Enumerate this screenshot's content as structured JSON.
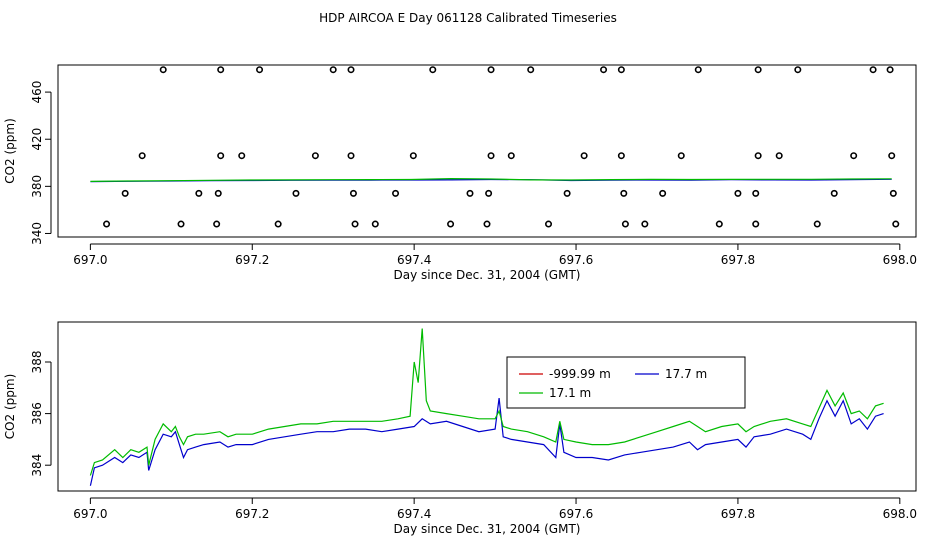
{
  "title": "HDP AIRCOA E  Day 061128  Calibrated Timeseries",
  "chart_data": [
    {
      "type": "scatter",
      "xlabel": "Day since Dec. 31, 2004 (GMT)",
      "ylabel": "CO2 (ppm)",
      "xlim": [
        696.96,
        698.02
      ],
      "ylim": [
        337,
        483
      ],
      "xticks": [
        697.0,
        697.2,
        697.4,
        697.6,
        697.8,
        698.0
      ],
      "xtick_labels": [
        "697.0",
        "697.2",
        "697.4",
        "697.6",
        "697.8",
        "698.0"
      ],
      "yticks": [
        340,
        380,
        420,
        460
      ],
      "ytick_labels": [
        "340",
        "380",
        "420",
        "460"
      ],
      "points": [
        [
          697.09,
          479
        ],
        [
          697.161,
          479
        ],
        [
          697.209,
          479
        ],
        [
          697.3,
          479
        ],
        [
          697.322,
          479
        ],
        [
          697.423,
          479
        ],
        [
          697.495,
          479
        ],
        [
          697.544,
          479
        ],
        [
          697.634,
          479
        ],
        [
          697.656,
          479
        ],
        [
          697.751,
          479
        ],
        [
          697.825,
          479
        ],
        [
          697.874,
          479
        ],
        [
          697.967,
          479
        ],
        [
          697.988,
          479
        ],
        [
          697.064,
          406
        ],
        [
          697.161,
          406
        ],
        [
          697.187,
          406
        ],
        [
          697.278,
          406
        ],
        [
          697.322,
          406
        ],
        [
          697.399,
          406
        ],
        [
          697.495,
          406
        ],
        [
          697.52,
          406
        ],
        [
          697.61,
          406
        ],
        [
          697.656,
          406
        ],
        [
          697.73,
          406
        ],
        [
          697.825,
          406
        ],
        [
          697.851,
          406
        ],
        [
          697.943,
          406
        ],
        [
          697.99,
          406
        ],
        [
          697.043,
          374
        ],
        [
          697.134,
          374
        ],
        [
          697.158,
          374
        ],
        [
          697.254,
          374
        ],
        [
          697.325,
          374
        ],
        [
          697.377,
          374
        ],
        [
          697.469,
          374
        ],
        [
          697.492,
          374
        ],
        [
          697.589,
          374
        ],
        [
          697.659,
          374
        ],
        [
          697.707,
          374
        ],
        [
          697.8,
          374
        ],
        [
          697.822,
          374
        ],
        [
          697.919,
          374
        ],
        [
          697.992,
          374
        ],
        [
          697.02,
          348
        ],
        [
          697.112,
          348
        ],
        [
          697.156,
          348
        ],
        [
          697.232,
          348
        ],
        [
          697.327,
          348
        ],
        [
          697.352,
          348
        ],
        [
          697.445,
          348
        ],
        [
          697.49,
          348
        ],
        [
          697.566,
          348
        ],
        [
          697.661,
          348
        ],
        [
          697.685,
          348
        ],
        [
          697.777,
          348
        ],
        [
          697.822,
          348
        ],
        [
          697.898,
          348
        ],
        [
          697.995,
          348
        ]
      ],
      "series": [
        {
          "name": "-999.99 m",
          "color": "#cc0000",
          "values": []
        },
        {
          "name": "17.7 m",
          "color": "#0000cc",
          "values": [
            384,
            384.3,
            384.5,
            384.8,
            385,
            385.1,
            385.2,
            385.3,
            385.4,
            385.5,
            385.8,
            385.6,
            385,
            385.2,
            385.4,
            385.3,
            385.6,
            385.5,
            385.4,
            385.7,
            386
          ]
        },
        {
          "name": "17.1 m",
          "color": "#00bb00",
          "values": [
            384.2,
            384.5,
            384.8,
            385.1,
            385.4,
            385.5,
            385.6,
            385.7,
            385.8,
            386.6,
            386.2,
            385.5,
            385.4,
            385.7,
            385.9,
            385.8,
            385.9,
            386,
            386,
            386.2,
            386.4
          ]
        }
      ]
    },
    {
      "type": "line",
      "xlabel": "Day since Dec. 31, 2004 (GMT)",
      "ylabel": "CO2 (ppm)",
      "xlim": [
        696.96,
        698.02
      ],
      "ylim": [
        383.0,
        389.55
      ],
      "xticks": [
        697.0,
        697.2,
        697.4,
        697.6,
        697.8,
        698.0
      ],
      "xtick_labels": [
        "697.0",
        "697.2",
        "697.4",
        "697.6",
        "697.8",
        "698.0"
      ],
      "yticks": [
        384,
        386,
        388
      ],
      "ytick_labels": [
        "384",
        "386",
        "388"
      ],
      "legend": [
        {
          "label": "-999.99 m",
          "color": "#cc0000"
        },
        {
          "label": "17.7 m",
          "color": "#0000cc"
        },
        {
          "label": "17.1 m",
          "color": "#00bb00"
        }
      ],
      "series": [
        {
          "name": "17.7 m",
          "color": "#0000cc",
          "points": [
            [
              697.0,
              383.2
            ],
            [
              697.005,
              383.9
            ],
            [
              697.015,
              384.0
            ],
            [
              697.03,
              384.3
            ],
            [
              697.04,
              384.1
            ],
            [
              697.05,
              384.4
            ],
            [
              697.06,
              384.3
            ],
            [
              697.07,
              384.5
            ],
            [
              697.072,
              383.8
            ],
            [
              697.08,
              384.6
            ],
            [
              697.09,
              385.2
            ],
            [
              697.1,
              385.1
            ],
            [
              697.105,
              385.3
            ],
            [
              697.11,
              384.8
            ],
            [
              697.115,
              384.3
            ],
            [
              697.12,
              384.6
            ],
            [
              697.13,
              384.7
            ],
            [
              697.14,
              384.8
            ],
            [
              697.16,
              384.9
            ],
            [
              697.17,
              384.7
            ],
            [
              697.18,
              384.8
            ],
            [
              697.2,
              384.8
            ],
            [
              697.22,
              385.0
            ],
            [
              697.24,
              385.1
            ],
            [
              697.26,
              385.2
            ],
            [
              697.28,
              385.3
            ],
            [
              697.3,
              385.3
            ],
            [
              697.32,
              385.4
            ],
            [
              697.34,
              385.4
            ],
            [
              697.36,
              385.3
            ],
            [
              697.38,
              385.4
            ],
            [
              697.4,
              385.5
            ],
            [
              697.41,
              385.8
            ],
            [
              697.42,
              385.6
            ],
            [
              697.44,
              385.7
            ],
            [
              697.46,
              385.5
            ],
            [
              697.48,
              385.3
            ],
            [
              697.5,
              385.4
            ],
            [
              697.505,
              386.6
            ],
            [
              697.51,
              385.1
            ],
            [
              697.52,
              385.0
            ],
            [
              697.54,
              384.9
            ],
            [
              697.56,
              384.8
            ],
            [
              697.575,
              384.3
            ],
            [
              697.58,
              385.6
            ],
            [
              697.585,
              384.5
            ],
            [
              697.6,
              384.3
            ],
            [
              697.62,
              384.3
            ],
            [
              697.64,
              384.2
            ],
            [
              697.66,
              384.4
            ],
            [
              697.68,
              384.5
            ],
            [
              697.7,
              384.6
            ],
            [
              697.72,
              384.7
            ],
            [
              697.74,
              384.9
            ],
            [
              697.75,
              384.6
            ],
            [
              697.76,
              384.8
            ],
            [
              697.78,
              384.9
            ],
            [
              697.8,
              385.0
            ],
            [
              697.81,
              384.7
            ],
            [
              697.82,
              385.1
            ],
            [
              697.84,
              385.2
            ],
            [
              697.86,
              385.4
            ],
            [
              697.88,
              385.2
            ],
            [
              697.89,
              385.0
            ],
            [
              697.9,
              385.8
            ],
            [
              697.91,
              386.5
            ],
            [
              697.92,
              385.9
            ],
            [
              697.93,
              386.5
            ],
            [
              697.94,
              385.6
            ],
            [
              697.95,
              385.8
            ],
            [
              697.96,
              385.4
            ],
            [
              697.97,
              385.9
            ],
            [
              697.98,
              386.0
            ]
          ]
        },
        {
          "name": "17.1 m",
          "color": "#00bb00",
          "points": [
            [
              697.0,
              383.6
            ],
            [
              697.005,
              384.1
            ],
            [
              697.015,
              384.2
            ],
            [
              697.03,
              384.6
            ],
            [
              697.04,
              384.3
            ],
            [
              697.05,
              384.6
            ],
            [
              697.06,
              384.5
            ],
            [
              697.07,
              384.7
            ],
            [
              697.072,
              384.0
            ],
            [
              697.08,
              385.0
            ],
            [
              697.09,
              385.6
            ],
            [
              697.1,
              385.3
            ],
            [
              697.105,
              385.5
            ],
            [
              697.11,
              385.1
            ],
            [
              697.115,
              384.8
            ],
            [
              697.12,
              385.1
            ],
            [
              697.13,
              385.2
            ],
            [
              697.14,
              385.2
            ],
            [
              697.16,
              385.3
            ],
            [
              697.17,
              385.1
            ],
            [
              697.18,
              385.2
            ],
            [
              697.2,
              385.2
            ],
            [
              697.22,
              385.4
            ],
            [
              697.24,
              385.5
            ],
            [
              697.26,
              385.6
            ],
            [
              697.28,
              385.6
            ],
            [
              697.3,
              385.7
            ],
            [
              697.32,
              385.7
            ],
            [
              697.34,
              385.7
            ],
            [
              697.36,
              385.7
            ],
            [
              697.38,
              385.8
            ],
            [
              697.395,
              385.9
            ],
            [
              697.4,
              388.0
            ],
            [
              697.405,
              387.2
            ],
            [
              697.41,
              389.3
            ],
            [
              697.415,
              386.5
            ],
            [
              697.42,
              386.1
            ],
            [
              697.44,
              386.0
            ],
            [
              697.46,
              385.9
            ],
            [
              697.48,
              385.8
            ],
            [
              697.5,
              385.8
            ],
            [
              697.505,
              386.1
            ],
            [
              697.51,
              385.5
            ],
            [
              697.52,
              385.4
            ],
            [
              697.54,
              385.3
            ],
            [
              697.56,
              385.1
            ],
            [
              697.575,
              384.9
            ],
            [
              697.58,
              385.7
            ],
            [
              697.585,
              385.0
            ],
            [
              697.6,
              384.9
            ],
            [
              697.62,
              384.8
            ],
            [
              697.64,
              384.8
            ],
            [
              697.66,
              384.9
            ],
            [
              697.68,
              385.1
            ],
            [
              697.7,
              385.3
            ],
            [
              697.72,
              385.5
            ],
            [
              697.74,
              385.7
            ],
            [
              697.75,
              385.5
            ],
            [
              697.76,
              385.3
            ],
            [
              697.78,
              385.5
            ],
            [
              697.8,
              385.6
            ],
            [
              697.81,
              385.3
            ],
            [
              697.82,
              385.5
            ],
            [
              697.84,
              385.7
            ],
            [
              697.86,
              385.8
            ],
            [
              697.88,
              385.6
            ],
            [
              697.89,
              385.5
            ],
            [
              697.9,
              386.2
            ],
            [
              697.91,
              386.9
            ],
            [
              697.92,
              386.3
            ],
            [
              697.93,
              386.8
            ],
            [
              697.94,
              386.0
            ],
            [
              697.95,
              386.1
            ],
            [
              697.96,
              385.8
            ],
            [
              697.97,
              386.3
            ],
            [
              697.98,
              386.4
            ]
          ]
        }
      ]
    }
  ]
}
